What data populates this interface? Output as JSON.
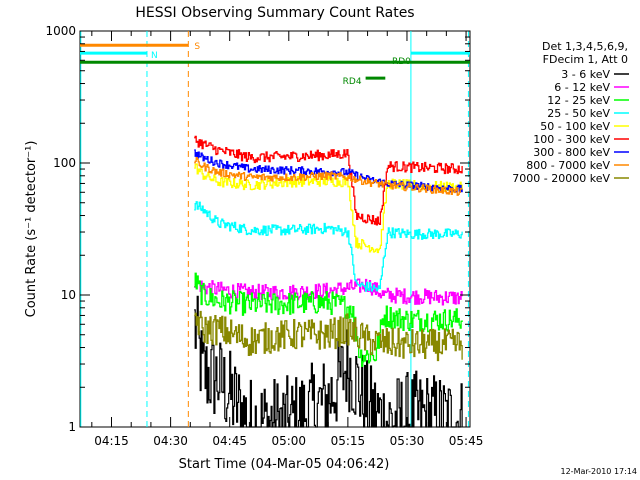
{
  "chart_data": {
    "type": "line",
    "title": "HESSI Observing Summary Count Rates",
    "xlabel": "Start Time (04-Mar-05 04:06:42)",
    "ylabel": "Count Rate (s⁻¹ detector⁻¹)",
    "yscale": "log",
    "ylim": [
      1,
      1000
    ],
    "xlim_minutes": [
      7,
      106
    ],
    "x_ticks": [
      {
        "label": "04:15",
        "min": 15
      },
      {
        "label": "04:30",
        "min": 30
      },
      {
        "label": "04:45",
        "min": 45
      },
      {
        "label": "05:00",
        "min": 60
      },
      {
        "label": "05:15",
        "min": 75
      },
      {
        "label": "05:30",
        "min": 90
      },
      {
        "label": "05:45",
        "min": 105
      }
    ],
    "y_ticks": [
      {
        "label": "1",
        "value": 1
      },
      {
        "label": "10",
        "value": 10
      },
      {
        "label": "100",
        "value": 100
      },
      {
        "label": "1000",
        "value": 1000
      }
    ],
    "legend": {
      "position": "top-right",
      "header": [
        "Det 1,3,4,5,6,9,",
        "FDecim 1, Att 0"
      ]
    },
    "series": [
      {
        "name": "3 - 6 keV",
        "color": "#000000",
        "points": [
          [
            36,
            6
          ],
          [
            38,
            2.6
          ],
          [
            42,
            2.3
          ],
          [
            50,
            1.1
          ],
          [
            60,
            1.1
          ],
          [
            70,
            1.6
          ],
          [
            75,
            3.0
          ],
          [
            80,
            1.4
          ],
          [
            85,
            1.1
          ],
          [
            90,
            1.2
          ],
          [
            95,
            1.2
          ],
          [
            104,
            1.1
          ]
        ]
      },
      {
        "name": "6 - 12 keV",
        "color": "#ff00ff",
        "points": [
          [
            36,
            13
          ],
          [
            38,
            11.5
          ],
          [
            42,
            11
          ],
          [
            50,
            10.5
          ],
          [
            60,
            10.5
          ],
          [
            70,
            10.8
          ],
          [
            77,
            11.5
          ],
          [
            80,
            12
          ],
          [
            84,
            10
          ],
          [
            90,
            9.8
          ],
          [
            104,
            9.5
          ]
        ]
      },
      {
        "name": "12 - 25 keV",
        "color": "#00ff00",
        "points": [
          [
            36,
            13
          ],
          [
            38,
            10
          ],
          [
            42,
            9
          ],
          [
            50,
            8.5
          ],
          [
            60,
            8.6
          ],
          [
            70,
            8.8
          ],
          [
            76,
            8
          ],
          [
            78,
            3.5
          ],
          [
            82,
            3.5
          ],
          [
            84,
            7
          ],
          [
            90,
            6.5
          ],
          [
            104,
            6.5
          ]
        ]
      },
      {
        "name": "25 - 50 keV",
        "color": "#00ffff",
        "points": [
          [
            36,
            48
          ],
          [
            38,
            45
          ],
          [
            42,
            35
          ],
          [
            50,
            31
          ],
          [
            60,
            31
          ],
          [
            70,
            32
          ],
          [
            75,
            30
          ],
          [
            77,
            12
          ],
          [
            83,
            11
          ],
          [
            85,
            30
          ],
          [
            90,
            29
          ],
          [
            104,
            29
          ]
        ]
      },
      {
        "name": "50 - 100 keV",
        "color": "#ffff00",
        "points": [
          [
            36,
            95
          ],
          [
            38,
            82
          ],
          [
            42,
            72
          ],
          [
            50,
            68
          ],
          [
            60,
            72
          ],
          [
            70,
            73
          ],
          [
            75,
            72
          ],
          [
            77,
            25
          ],
          [
            83,
            22
          ],
          [
            85,
            70
          ],
          [
            90,
            68
          ],
          [
            104,
            65
          ]
        ]
      },
      {
        "name": "100 - 300 keV",
        "color": "#ff0000",
        "points": [
          [
            36,
            150
          ],
          [
            38,
            140
          ],
          [
            42,
            125
          ],
          [
            50,
            110
          ],
          [
            60,
            112
          ],
          [
            70,
            115
          ],
          [
            75,
            118
          ],
          [
            77,
            40
          ],
          [
            83,
            36
          ],
          [
            85,
            95
          ],
          [
            90,
            93
          ],
          [
            104,
            90
          ]
        ]
      },
      {
        "name": "300 - 800 keV",
        "color": "#0000ff",
        "points": [
          [
            36,
            120
          ],
          [
            38,
            110
          ],
          [
            42,
            100
          ],
          [
            50,
            90
          ],
          [
            60,
            88
          ],
          [
            70,
            86
          ],
          [
            75,
            85
          ],
          [
            80,
            75
          ],
          [
            85,
            70
          ],
          [
            90,
            68
          ],
          [
            104,
            63
          ]
        ]
      },
      {
        "name": "800 - 7000 keV",
        "color": "#ff8800",
        "points": [
          [
            36,
            105
          ],
          [
            38,
            95
          ],
          [
            42,
            85
          ],
          [
            50,
            78
          ],
          [
            60,
            78
          ],
          [
            70,
            80
          ],
          [
            75,
            78
          ],
          [
            80,
            72
          ],
          [
            85,
            68
          ],
          [
            90,
            66
          ],
          [
            104,
            60
          ]
        ]
      },
      {
        "name": "7000 - 20000 keV",
        "color": "#888800",
        "points": [
          [
            36,
            7
          ],
          [
            38,
            5.5
          ],
          [
            42,
            5.5
          ],
          [
            50,
            4.5
          ],
          [
            60,
            5
          ],
          [
            70,
            5
          ],
          [
            75,
            5.5
          ],
          [
            80,
            4.5
          ],
          [
            85,
            4.3
          ],
          [
            90,
            4.2
          ],
          [
            104,
            4.2
          ]
        ]
      }
    ],
    "flags": [
      {
        "label": "S",
        "color": "#ff8800",
        "level": 780,
        "x_start": 7,
        "x_end": 34.5
      },
      {
        "label": "N",
        "color": "#00ffff",
        "level": 680,
        "x_start": 7,
        "x_end": 24,
        "x_start2": 91,
        "x_end2": 106
      },
      {
        "label": "RD0",
        "color": "#008800",
        "level": 580,
        "x_start": 7,
        "x_end": 106
      },
      {
        "label": "RD4",
        "color": "#008800",
        "level": 440,
        "x_start": 79.5,
        "x_end": 84.5
      }
    ],
    "markers": [
      {
        "color": "#00ffff",
        "style": "solid",
        "x": 7.2
      },
      {
        "color": "#00ffff",
        "style": "dashed",
        "x": 24
      },
      {
        "color": "#ff8800",
        "style": "dashed",
        "x": 34.5
      },
      {
        "color": "#00ffff",
        "style": "solid",
        "x": 91
      },
      {
        "color": "#00ffff",
        "style": "dashed",
        "x": 105.6
      }
    ],
    "grid": false
  },
  "footer": {
    "timestamp": "12-Mar-2010 17:14"
  }
}
